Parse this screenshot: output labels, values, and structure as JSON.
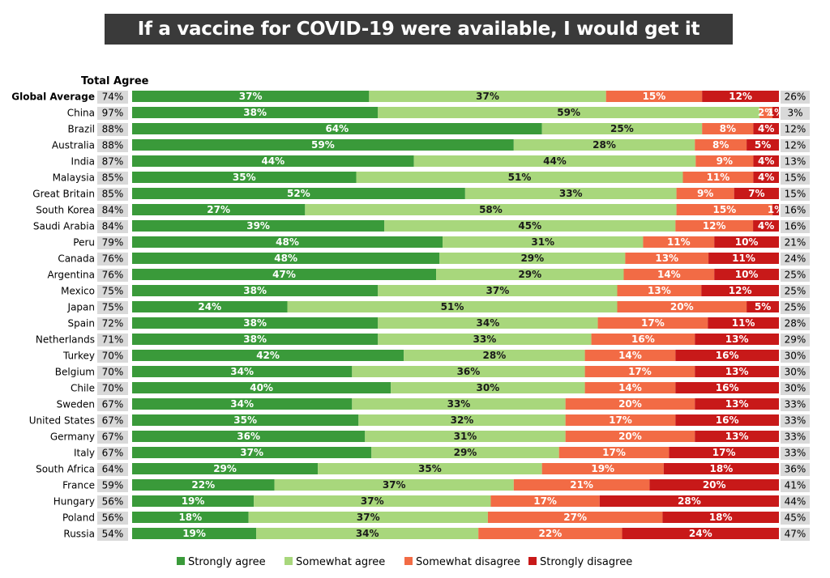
{
  "chart_data": {
    "type": "bar",
    "title": "If a vaccine for COVID-19 were available, I would get it",
    "total_agree_header": "Total Agree",
    "series": [
      {
        "name": "Strongly agree",
        "color": "#3a9a3a"
      },
      {
        "name": "Somewhat agree",
        "color": "#a8d77c"
      },
      {
        "name": "Somewhat disagree",
        "color": "#f26b45"
      },
      {
        "name": "Strongly disagree",
        "color": "#c81919"
      }
    ],
    "rows": [
      {
        "label": "Global Average",
        "bold": true,
        "total_agree": "74%",
        "total_disagree": "26%",
        "values": [
          37,
          37,
          15,
          12
        ]
      },
      {
        "label": "China",
        "total_agree": "97%",
        "total_disagree": "3%",
        "values": [
          38,
          59,
          2,
          1
        ]
      },
      {
        "label": "Brazil",
        "total_agree": "88%",
        "total_disagree": "12%",
        "values": [
          64,
          25,
          8,
          4
        ]
      },
      {
        "label": "Australia",
        "total_agree": "88%",
        "total_disagree": "12%",
        "values": [
          59,
          28,
          8,
          5
        ]
      },
      {
        "label": "India",
        "total_agree": "87%",
        "total_disagree": "13%",
        "values": [
          44,
          44,
          9,
          4
        ]
      },
      {
        "label": "Malaysia",
        "total_agree": "85%",
        "total_disagree": "15%",
        "values": [
          35,
          51,
          11,
          4
        ]
      },
      {
        "label": "Great Britain",
        "total_agree": "85%",
        "total_disagree": "15%",
        "values": [
          52,
          33,
          9,
          7
        ]
      },
      {
        "label": "South Korea",
        "total_agree": "84%",
        "total_disagree": "16%",
        "values": [
          27,
          58,
          15,
          1
        ]
      },
      {
        "label": "Saudi Arabia",
        "total_agree": "84%",
        "total_disagree": "16%",
        "values": [
          39,
          45,
          12,
          4
        ]
      },
      {
        "label": "Peru",
        "total_agree": "79%",
        "total_disagree": "21%",
        "values": [
          48,
          31,
          11,
          10
        ]
      },
      {
        "label": "Canada",
        "total_agree": "76%",
        "total_disagree": "24%",
        "values": [
          48,
          29,
          13,
          11
        ]
      },
      {
        "label": "Argentina",
        "total_agree": "76%",
        "total_disagree": "25%",
        "values": [
          47,
          29,
          14,
          10
        ]
      },
      {
        "label": "Mexico",
        "total_agree": "75%",
        "total_disagree": "25%",
        "values": [
          38,
          37,
          13,
          12
        ]
      },
      {
        "label": "Japan",
        "total_agree": "75%",
        "total_disagree": "25%",
        "values": [
          24,
          51,
          20,
          5
        ]
      },
      {
        "label": "Spain",
        "total_agree": "72%",
        "total_disagree": "28%",
        "values": [
          38,
          34,
          17,
          11
        ]
      },
      {
        "label": "Netherlands",
        "total_agree": "71%",
        "total_disagree": "29%",
        "values": [
          38,
          33,
          16,
          13
        ]
      },
      {
        "label": "Turkey",
        "total_agree": "70%",
        "total_disagree": "30%",
        "values": [
          42,
          28,
          14,
          16
        ]
      },
      {
        "label": "Belgium",
        "total_agree": "70%",
        "total_disagree": "30%",
        "values": [
          34,
          36,
          17,
          13
        ]
      },
      {
        "label": "Chile",
        "total_agree": "70%",
        "total_disagree": "30%",
        "values": [
          40,
          30,
          14,
          16
        ]
      },
      {
        "label": "Sweden",
        "total_agree": "67%",
        "total_disagree": "33%",
        "values": [
          34,
          33,
          20,
          13
        ]
      },
      {
        "label": "United States",
        "total_agree": "67%",
        "total_disagree": "33%",
        "values": [
          35,
          32,
          17,
          16
        ]
      },
      {
        "label": "Germany",
        "total_agree": "67%",
        "total_disagree": "33%",
        "values": [
          36,
          31,
          20,
          13
        ]
      },
      {
        "label": "Italy",
        "total_agree": "67%",
        "total_disagree": "33%",
        "values": [
          37,
          29,
          17,
          17
        ]
      },
      {
        "label": "South Africa",
        "total_agree": "64%",
        "total_disagree": "36%",
        "values": [
          29,
          35,
          19,
          18
        ]
      },
      {
        "label": "France",
        "total_agree": "59%",
        "total_disagree": "41%",
        "values": [
          22,
          37,
          21,
          20
        ]
      },
      {
        "label": "Hungary",
        "total_agree": "56%",
        "total_disagree": "44%",
        "values": [
          19,
          37,
          17,
          28
        ]
      },
      {
        "label": "Poland",
        "total_agree": "56%",
        "total_disagree": "45%",
        "values": [
          18,
          37,
          27,
          18
        ]
      },
      {
        "label": "Russia",
        "total_agree": "54%",
        "total_disagree": "47%",
        "values": [
          19,
          34,
          22,
          24
        ]
      }
    ],
    "legend_position": "bottom",
    "grid": false
  }
}
